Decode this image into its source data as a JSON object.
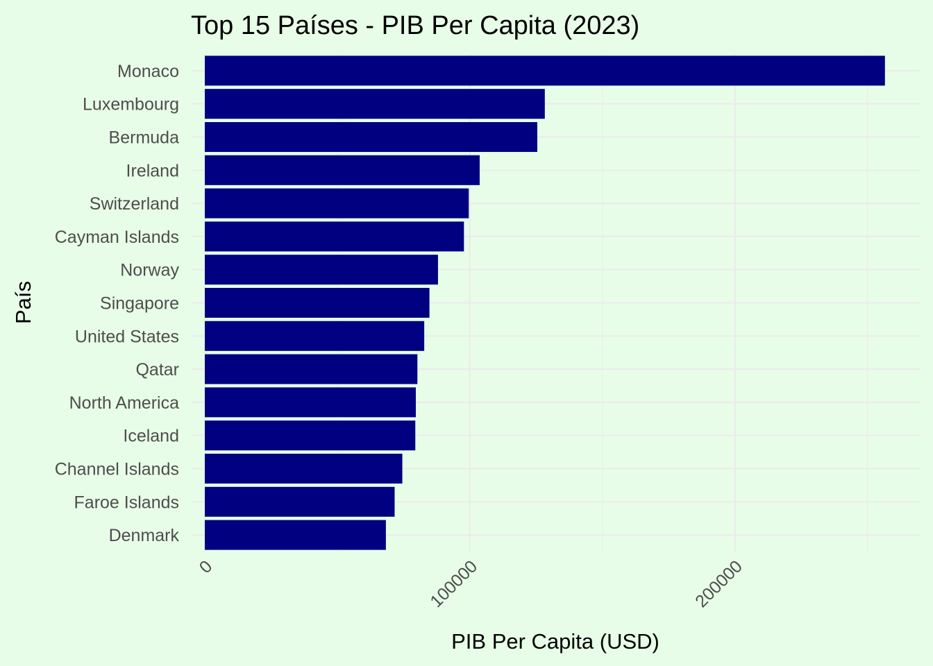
{
  "chart_data": {
    "type": "bar",
    "orientation": "horizontal",
    "title": "Top 15 Países - PIB Per Capita (2023)",
    "xlabel": "PIB Per Capita (USD)",
    "ylabel": "País",
    "categories": [
      "Monaco",
      "Luxembourg",
      "Bermuda",
      "Ireland",
      "Switzerland",
      "Cayman Islands",
      "Norway",
      "Singapore",
      "United States",
      "Qatar",
      "North America",
      "Iceland",
      "Channel Islands",
      "Faroe Islands",
      "Denmark"
    ],
    "values": [
      256581,
      128259,
      125419,
      103685,
      99565,
      97750,
      87962,
      84734,
      82769,
      80195,
      79600,
      79400,
      74500,
      71600,
      68300
    ],
    "xlim": [
      -5000,
      270000
    ],
    "xticks": [
      0,
      100000,
      200000
    ],
    "xtick_labels": [
      "0",
      "100000",
      "200000"
    ],
    "xtick_rotation": -45,
    "grid": true,
    "legend": "none",
    "colors": {
      "bar": "#000080",
      "background": "#E8FDE7",
      "grid": "#EBEBEB",
      "tick_text": "#4D4D4D",
      "text": "#000000"
    }
  }
}
